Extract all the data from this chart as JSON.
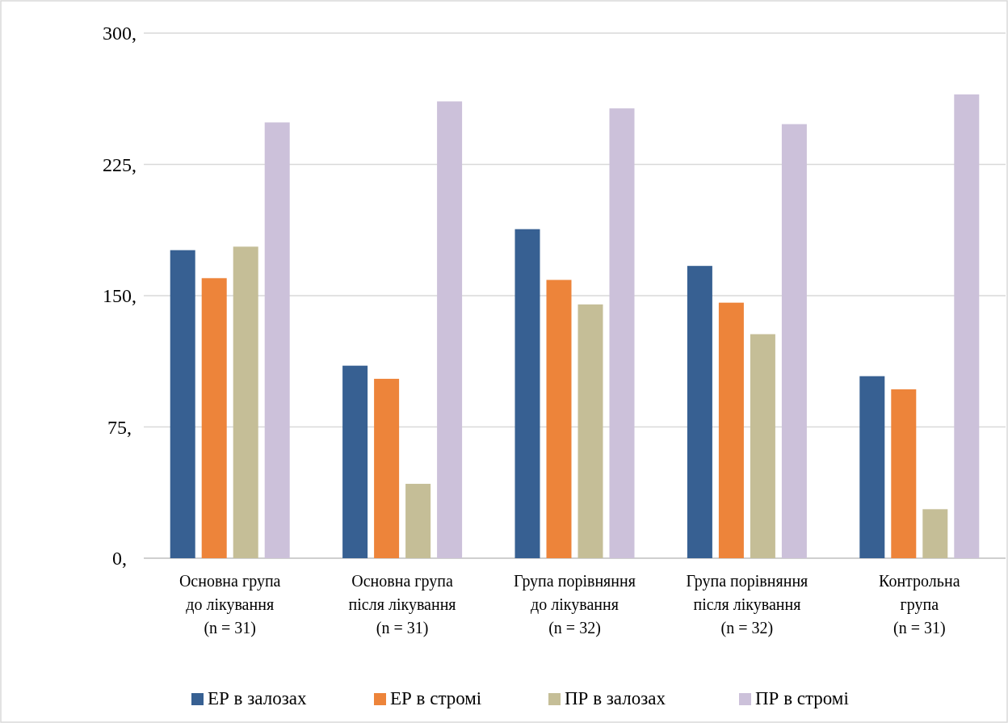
{
  "chart_data": {
    "type": "bar",
    "categories": [
      "Основна група\nдо лікування\n(n = 31)",
      "Основна група\nпісля лікування\n(n = 31)",
      "Група порівняння\nдо лікування\n(n = 32)",
      "Група порівняння\nпісля лікування\n(n = 32)",
      "Контрольна\nгрупа\n(n = 31)"
    ],
    "series": [
      {
        "name": "ЕР в залозах",
        "color": "#376092",
        "values": [
          176,
          110,
          188,
          167,
          104
        ]
      },
      {
        "name": "ЕР в стромі",
        "color": "#ed843a",
        "values": [
          160,
          102.5,
          159,
          146,
          96.5
        ]
      },
      {
        "name": "ПР в залозах",
        "color": "#c5be97",
        "values": [
          178,
          42.5,
          145,
          128,
          28
        ]
      },
      {
        "name": "ПР в стромі",
        "color": "#ccc1da",
        "values": [
          249,
          261,
          257,
          248,
          265
        ]
      }
    ],
    "ylim": [
      0,
      300
    ],
    "yticks": [
      {
        "value": 0,
        "label": "0,"
      },
      {
        "value": 75,
        "label": "75,"
      },
      {
        "value": 150,
        "label": "150,"
      },
      {
        "value": 225,
        "label": "225,"
      },
      {
        "value": 300,
        "label": "300,"
      }
    ],
    "grid": "y",
    "legend": "bottom"
  }
}
